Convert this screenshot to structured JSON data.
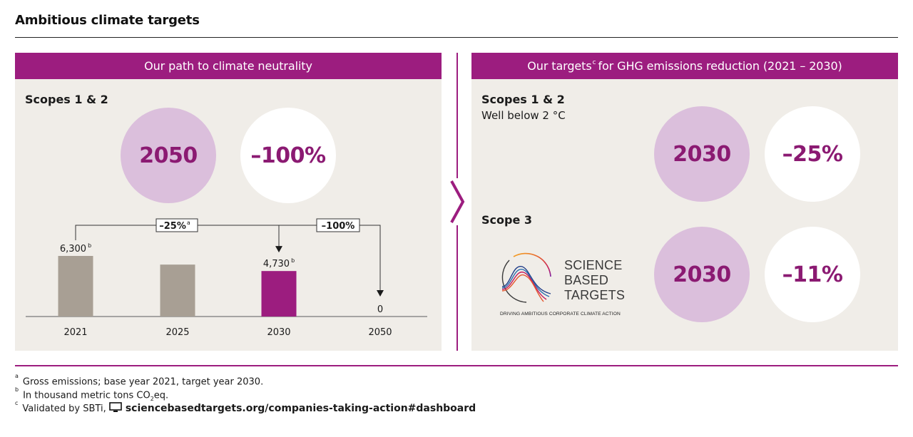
{
  "page_title": "Ambitious climate targets",
  "left_panel": {
    "header": "Our path to climate neutrality",
    "scope_label": "Scopes 1 & 2",
    "circle_year": "2050",
    "circle_value": "–100%"
  },
  "right_panel": {
    "header_pre": "Our targets",
    "header_sup": "c",
    "header_post": "for GHG emissions reduction (2021 – 2030)",
    "scopes12": {
      "label": "Scopes 1 & 2",
      "sub": "Well below 2 °C",
      "year": "2030",
      "value": "–25%"
    },
    "scope3": {
      "label": "Scope 3",
      "year": "2030",
      "value": "–11%"
    },
    "sbt_logo": {
      "line1": "SCIENCE",
      "line2": "BASED",
      "line3": "TARGETS",
      "tagline": "DRIVING AMBITIOUS CORPORATE CLIMATE ACTION"
    }
  },
  "colors": {
    "accent": "#9c1d7f",
    "bar_grey": "#a89f94",
    "bar_highlight": "#9c1d7f",
    "panel_bg": "#f0ede8",
    "circle_pink": "#dbbfdc"
  },
  "chart_data": {
    "type": "bar",
    "categories": [
      "2021",
      "2025",
      "2030",
      "2050"
    ],
    "values": [
      6300,
      5400,
      4730,
      0
    ],
    "value_labels": [
      "6,300",
      "",
      "4,730",
      "0"
    ],
    "value_label_sups": [
      "b",
      "",
      "b",
      ""
    ],
    "highlight_category": "2030",
    "ylim": [
      0,
      6300
    ],
    "annotations": [
      {
        "label": "–25%",
        "sup": "a",
        "from": "2021",
        "to": "2030"
      },
      {
        "label": "–100%",
        "sup": "",
        "from": "2030",
        "to": "2050"
      }
    ]
  },
  "footnotes": [
    {
      "sup": "a",
      "parts": [
        "Gross emissions; base year 2021, target year 2030."
      ]
    },
    {
      "sup": "b",
      "parts": [
        "In thousand metric tons CO",
        "2",
        "eq."
      ]
    },
    {
      "sup": "c",
      "parts": [
        "Validated by SBTi, ",
        "sciencebasedtargets.org/companies-taking-action#dashboard"
      ]
    }
  ]
}
